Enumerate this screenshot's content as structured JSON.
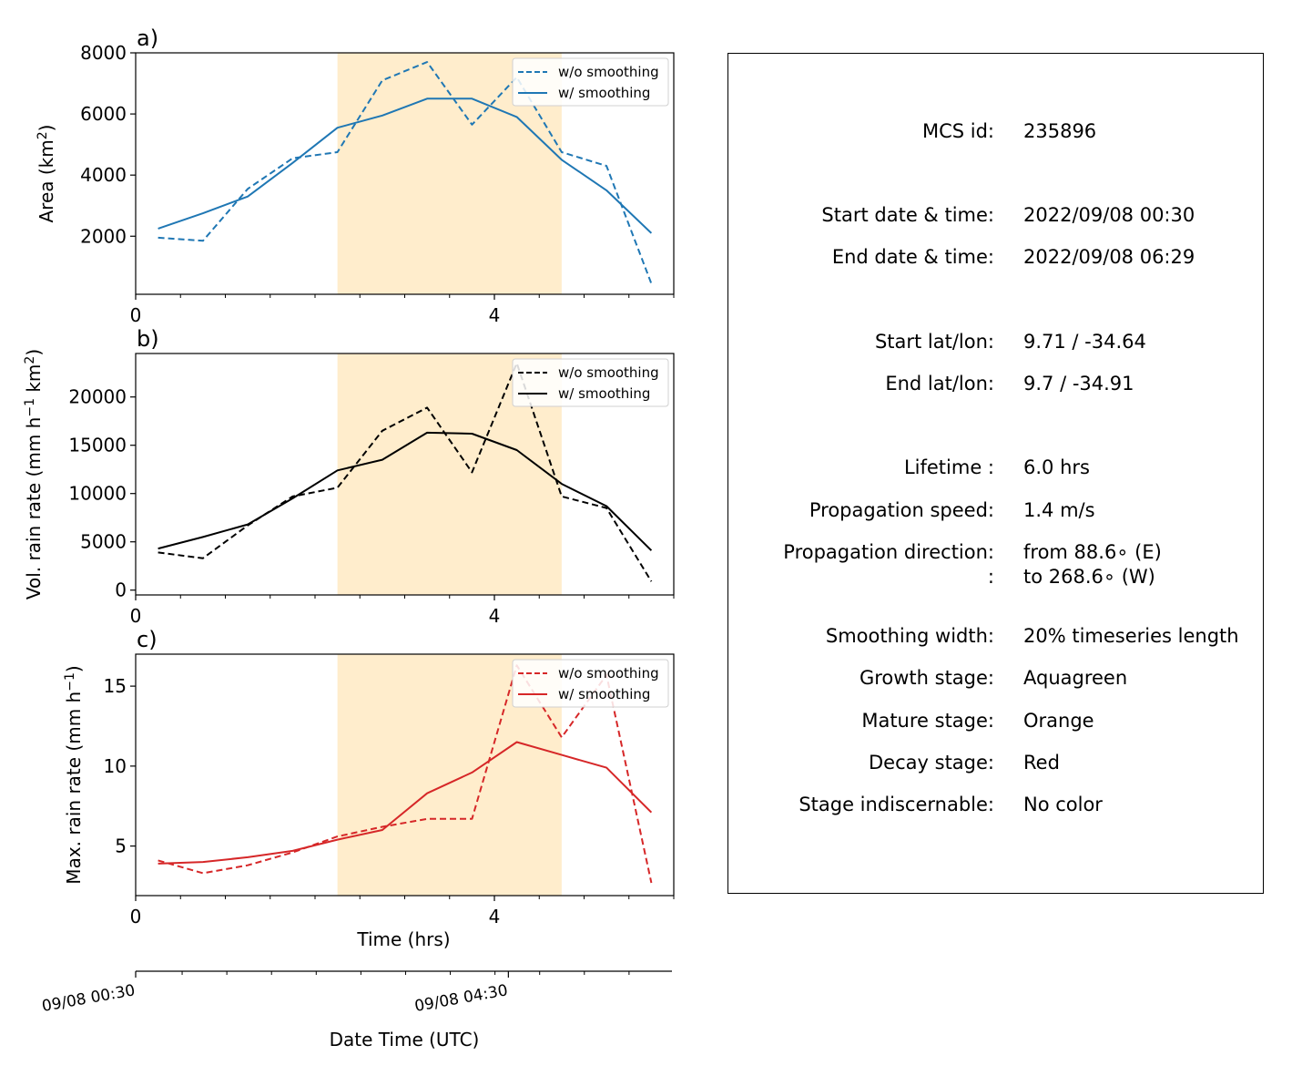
{
  "chart_data": [
    {
      "panel_label": "a)",
      "type": "line",
      "ylabel_base": "Area  (km",
      "ylabel_sup": "2",
      "ylabel_end": ")",
      "xlim": [
        0,
        6
      ],
      "ylim": [
        100,
        8000
      ],
      "yticks": [
        2000,
        4000,
        6000,
        8000
      ],
      "xticks": [
        0,
        4
      ],
      "shade_range": [
        2.25,
        4.75
      ],
      "shade_color": "#ffedcc",
      "color": "#1f77b4",
      "legend_position": "top-right",
      "x": [
        0.25,
        0.75,
        1.25,
        1.75,
        2.25,
        2.75,
        3.25,
        3.75,
        4.25,
        4.75,
        5.25,
        5.75
      ],
      "series": [
        {
          "name": "w/o smoothing",
          "dash": true,
          "values": [
            1950,
            1850,
            3550,
            4550,
            4750,
            7100,
            7700,
            5650,
            7200,
            4750,
            4300,
            450
          ]
        },
        {
          "name": "w/ smoothing",
          "dash": false,
          "values": [
            2250,
            2750,
            3300,
            4400,
            5550,
            5950,
            6500,
            6500,
            5900,
            4500,
            3500,
            2100
          ]
        }
      ]
    },
    {
      "panel_label": "b)",
      "type": "line",
      "ylabel_base": "Vol. rain rate (mm h",
      "ylabel_sup": "−1",
      "ylabel_mid": " km",
      "ylabel_sup2": "2",
      "ylabel_end": ")",
      "xlim": [
        0,
        6
      ],
      "ylim": [
        -500,
        24500
      ],
      "yticks": [
        0,
        5000,
        10000,
        15000,
        20000
      ],
      "xticks": [
        0,
        4
      ],
      "shade_range": [
        2.25,
        4.75
      ],
      "shade_color": "#ffedcc",
      "color": "#000000",
      "legend_position": "top-right",
      "x": [
        0.25,
        0.75,
        1.25,
        1.75,
        2.25,
        2.75,
        3.25,
        3.75,
        4.25,
        4.75,
        5.25,
        5.75
      ],
      "series": [
        {
          "name": "w/o smoothing",
          "dash": true,
          "values": [
            3900,
            3300,
            6700,
            9700,
            10600,
            16500,
            18900,
            12200,
            23500,
            9700,
            8500,
            900
          ]
        },
        {
          "name": "w/ smoothing",
          "dash": false,
          "values": [
            4300,
            5500,
            6800,
            9500,
            12400,
            13500,
            16300,
            16200,
            14500,
            11000,
            8700,
            4100
          ]
        }
      ]
    },
    {
      "panel_label": "c)",
      "type": "line",
      "ylabel_base": "Max. rain rate  (mm h",
      "ylabel_sup": "−1",
      "ylabel_end": ")",
      "xlim": [
        0,
        6
      ],
      "ylim": [
        1.9,
        17
      ],
      "yticks": [
        5,
        10,
        15
      ],
      "xticks": [
        0,
        4
      ],
      "xlabel": "Time (hrs)",
      "shade_range": [
        2.25,
        4.75
      ],
      "shade_color": "#ffedcc",
      "color": "#d62728",
      "legend_position": "top-right",
      "x": [
        0.25,
        0.75,
        1.25,
        1.75,
        2.25,
        2.75,
        3.25,
        3.75,
        4.25,
        4.75,
        5.25,
        5.75
      ],
      "series": [
        {
          "name": "w/o smoothing",
          "dash": true,
          "values": [
            4.1,
            3.3,
            3.8,
            4.6,
            5.6,
            6.2,
            6.7,
            6.7,
            16.3,
            11.8,
            15.7,
            2.7
          ]
        },
        {
          "name": "w/ smoothing",
          "dash": false,
          "values": [
            3.9,
            4.0,
            4.3,
            4.7,
            5.4,
            6.0,
            8.3,
            9.6,
            11.5,
            10.7,
            9.9,
            7.1
          ]
        }
      ]
    }
  ],
  "date_axis": {
    "xlabel": "Date Time (UTC)",
    "tick_labels": [
      {
        "x": 0,
        "label": "09/08 00:30"
      },
      {
        "x": 4.17,
        "label": "09/08 04:30"
      }
    ]
  },
  "info": {
    "rows": [
      {
        "key": "MCS id:",
        "value": "235896"
      },
      {
        "key": "Start date & time:",
        "value": "2022/09/08 00:30"
      },
      {
        "key": "End date & time:",
        "value": "2022/09/08 06:29"
      },
      {
        "key": "Start lat/lon:",
        "value": "9.71 / -34.64"
      },
      {
        "key": "End lat/lon:",
        "value": "9.7 / -34.91"
      },
      {
        "key": "Lifetime :",
        "value": "6.0 hrs"
      },
      {
        "key": "Propagation speed:",
        "value": "1.4 m/s"
      },
      {
        "key": "Propagation direction:",
        "value": "from  88.6∘ (E)"
      },
      {
        "key": ":",
        "value": "to   268.6∘ (W)"
      },
      {
        "key": "Smoothing width:",
        "value": "20% timeseries length"
      },
      {
        "key": "Growth stage:",
        "value": "Aquagreen"
      },
      {
        "key": "Mature stage:",
        "value": "Orange"
      },
      {
        "key": "Decay stage:",
        "value": "Red"
      },
      {
        "key": "Stage indiscernable:",
        "value": "No color"
      }
    ]
  }
}
